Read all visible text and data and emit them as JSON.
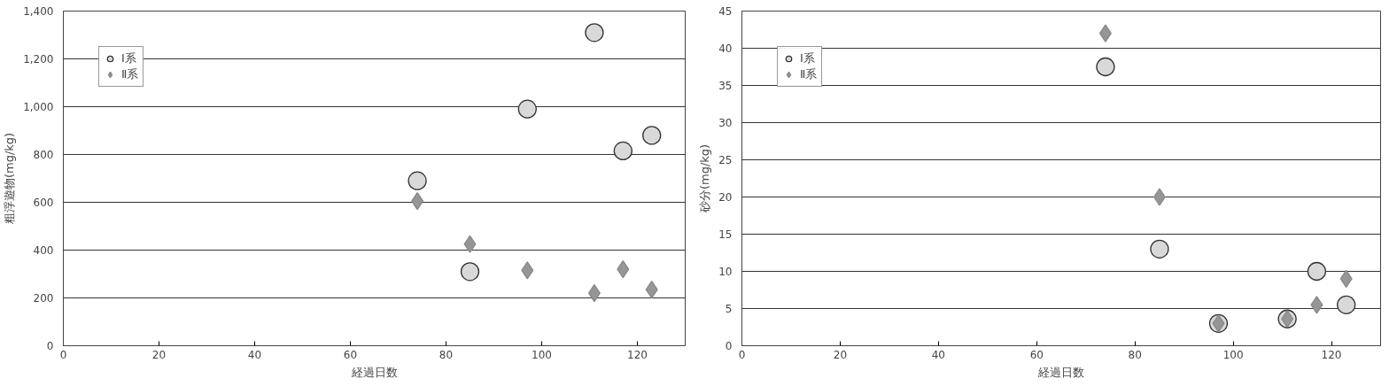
{
  "chart_data": [
    {
      "type": "scatter",
      "xlabel": "経過日数",
      "ylabel": "粗浮遊物(mg/kg)",
      "xlim": [
        0,
        130
      ],
      "xticks": [
        0,
        20,
        40,
        60,
        80,
        100,
        120
      ],
      "ylim": [
        0,
        1400
      ],
      "yticks": [
        0,
        {
          "value": 200,
          "label": "200"
        },
        {
          "value": 400,
          "label": "400"
        },
        {
          "value": 600,
          "label": "600"
        },
        {
          "value": 800,
          "label": "800"
        },
        {
          "value": 1000,
          "label": "1,000"
        },
        {
          "value": 1200,
          "label": "1,200"
        },
        {
          "value": 1400,
          "label": "1,400"
        }
      ],
      "grid": "y",
      "legend": "top left",
      "series": [
        {
          "name": "Ⅰ系",
          "color": "#d9d9d9",
          "marker": "circle",
          "x": [
            74,
            85,
            97,
            111,
            117,
            123
          ],
          "values": [
            690,
            310,
            990,
            1310,
            815,
            880
          ]
        },
        {
          "name": "Ⅱ系",
          "color": "#969696",
          "marker": "diamond",
          "x": [
            74,
            85,
            97,
            111,
            117,
            123
          ],
          "values": [
            605,
            425,
            315,
            220,
            320,
            235
          ]
        }
      ]
    },
    {
      "type": "scatter",
      "xlabel": "経過日数",
      "ylabel": "砂分(mg/kg)",
      "xlim": [
        0,
        130
      ],
      "xticks": [
        0,
        20,
        40,
        60,
        80,
        100,
        120
      ],
      "ylim": [
        0,
        45
      ],
      "yticks": [
        0,
        5,
        10,
        15,
        20,
        25,
        30,
        35,
        40,
        45
      ],
      "grid": "y",
      "legend": "top left",
      "series": [
        {
          "name": "Ⅰ系",
          "color": "#d9d9d9",
          "marker": "circle",
          "x": [
            74,
            85,
            97,
            111,
            117,
            123
          ],
          "values": [
            37.5,
            13,
            3,
            3.6,
            10,
            5.5
          ]
        },
        {
          "name": "Ⅱ系",
          "color": "#969696",
          "marker": "diamond",
          "x": [
            74,
            85,
            97,
            111,
            117,
            123
          ],
          "values": [
            42,
            20,
            3,
            3.6,
            5.5,
            9
          ]
        }
      ]
    }
  ]
}
